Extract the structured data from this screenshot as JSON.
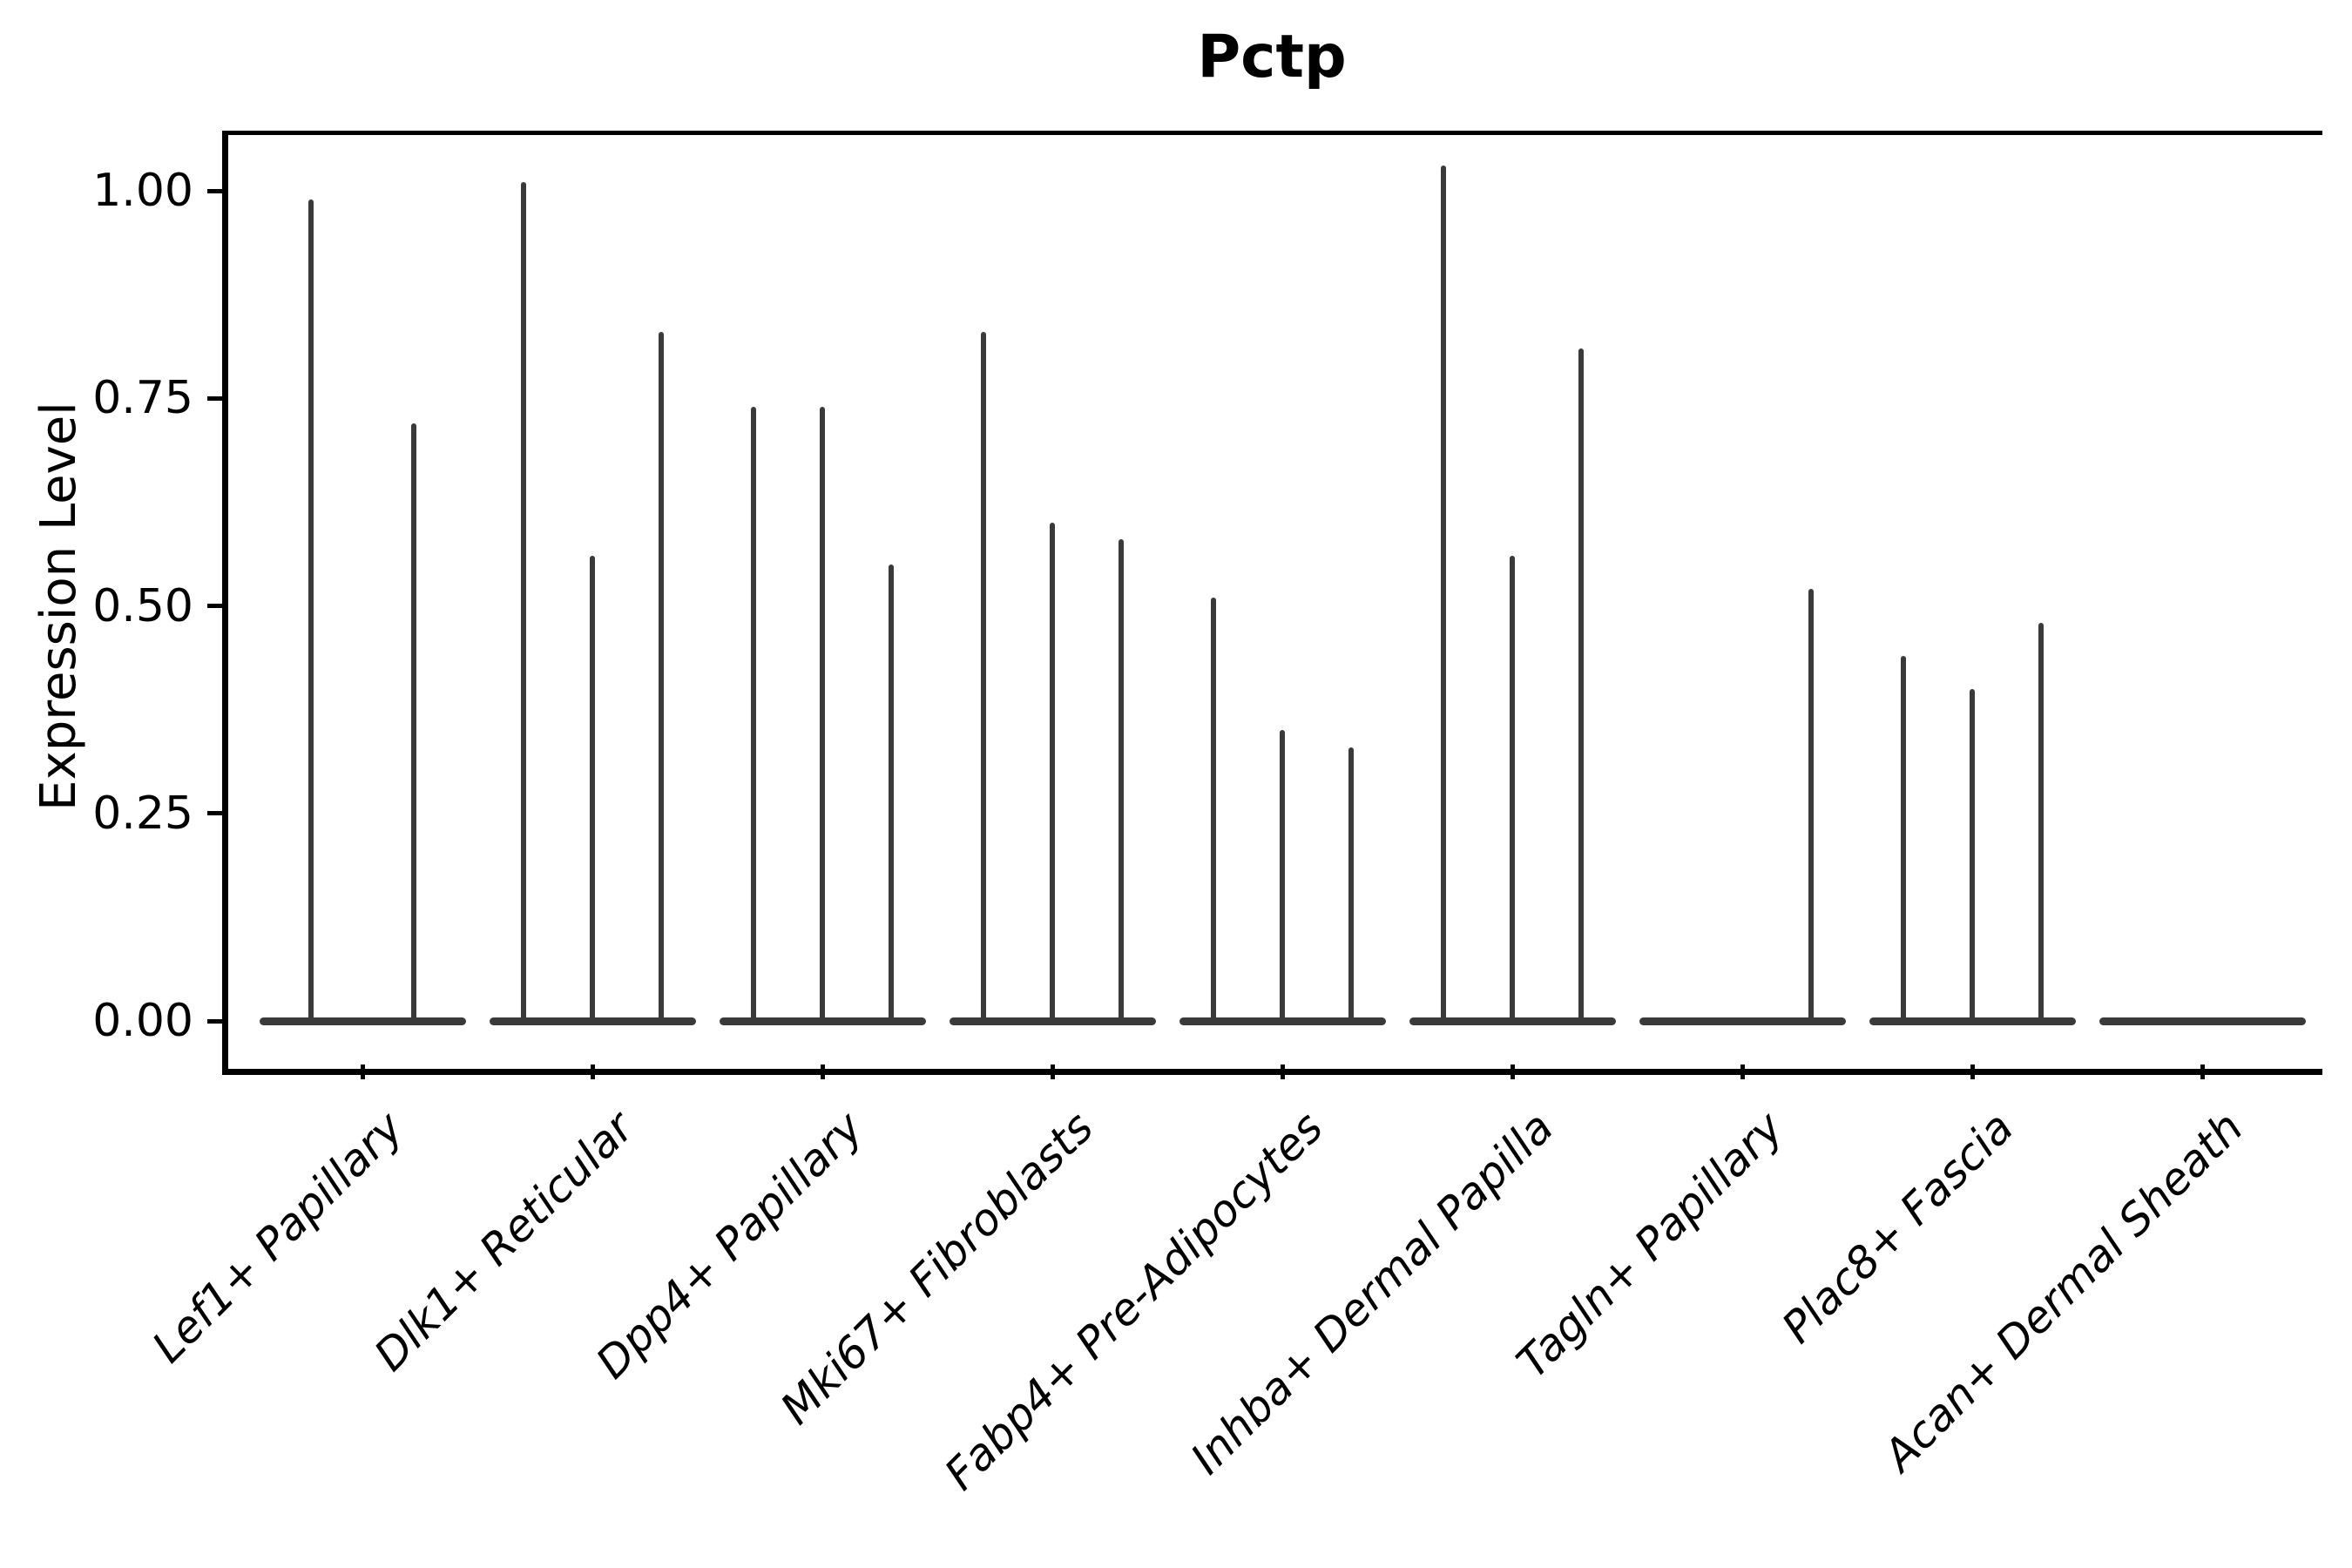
{
  "title": "Pctp",
  "y_axis": {
    "label": "Expression Level",
    "tick_labels": [
      "0.00",
      "0.25",
      "0.50",
      "0.75",
      "1.00"
    ]
  },
  "x_axis": {
    "categories": [
      "Lef1+ Papillary",
      "Dlk1+ Reticular",
      "Dpp4+ Papillary",
      "Mki67+ Fibroblasts",
      "Fabp4+ Pre-Adipocytes",
      "Inhba+ Dermal Papilla",
      "Tagln+ Papillary",
      "Plac8+ Fascia",
      "Acan+ Dermal Sheath"
    ]
  },
  "colors": {
    "violin": "#3a3a3a",
    "axis": "#000000",
    "text": "#000000",
    "background": "#ffffff"
  },
  "chart_data": {
    "type": "violin",
    "title": "Pctp",
    "xlabel": "",
    "ylabel": "Expression Level",
    "ylim": [
      0,
      1.08
    ],
    "yticks": [
      0.0,
      0.25,
      0.5,
      0.75,
      1.0
    ],
    "grid": false,
    "legend": "none",
    "description": "Collapsed (near-zero-width) violin spikes; each number is the peak expression value reached by one violin; 0 means a flat violin lying on the baseline.",
    "categories": [
      "Lef1+ Papillary",
      "Dlk1+ Reticular",
      "Dpp4+ Papillary",
      "Mki67+ Fibroblasts",
      "Fabp4+ Pre-Adipocytes",
      "Inhba+ Dermal Papilla",
      "Tagln+ Papillary",
      "Plac8+ Fascia",
      "Acan+ Dermal Sheath"
    ],
    "series": [
      {
        "category": "Lef1+ Papillary",
        "violins": [
          0.99,
          0.72
        ]
      },
      {
        "category": "Dlk1+ Reticular",
        "violins": [
          1.01,
          0.56,
          0.83
        ]
      },
      {
        "category": "Dpp4+ Papillary",
        "violins": [
          0.74,
          0.74,
          0.55
        ]
      },
      {
        "category": "Mki67+ Fibroblasts",
        "violins": [
          0.83,
          0.6,
          0.58
        ]
      },
      {
        "category": "Fabp4+ Pre-Adipocytes",
        "violins": [
          0.51,
          0.35,
          0.33
        ]
      },
      {
        "category": "Inhba+ Dermal Papilla",
        "violins": [
          1.03,
          0.56,
          0.81
        ]
      },
      {
        "category": "Tagln+ Papillary",
        "violins": [
          0,
          0,
          0.52
        ]
      },
      {
        "category": "Plac8+ Fascia",
        "violins": [
          0.44,
          0.4,
          0.48
        ]
      },
      {
        "category": "Acan+ Dermal Sheath",
        "violins": [
          0,
          0,
          0
        ]
      }
    ]
  }
}
